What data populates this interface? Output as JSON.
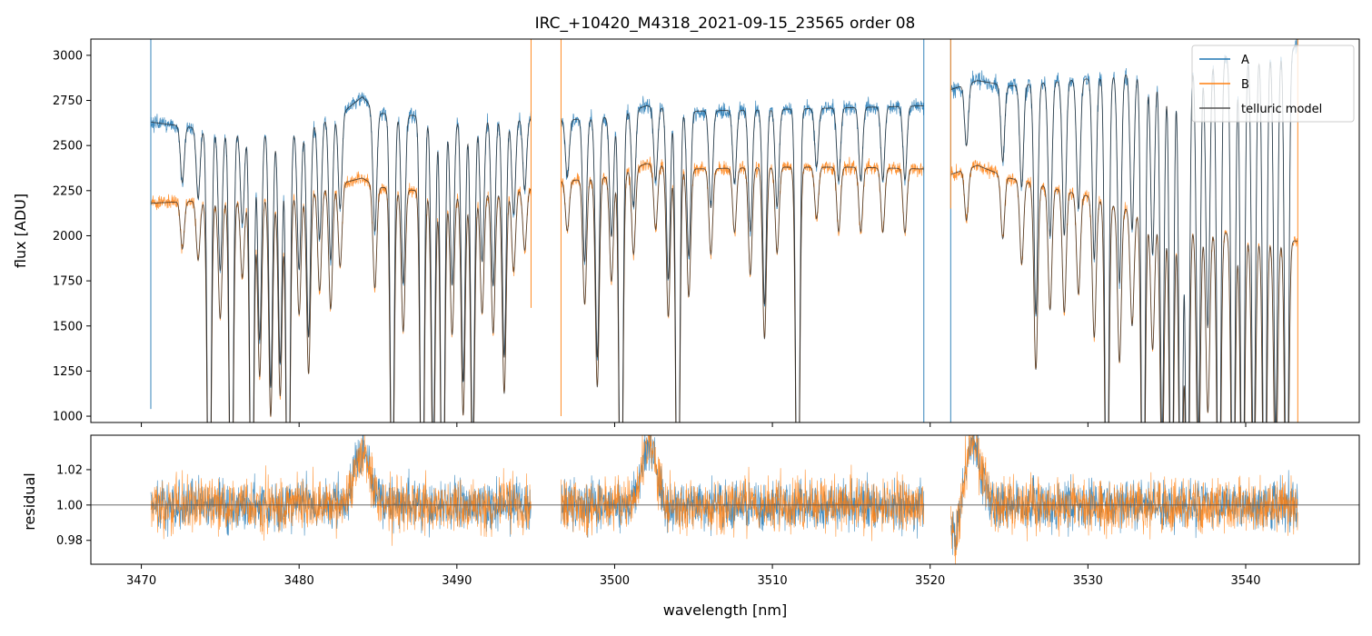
{
  "chart_data": [
    {
      "type": "line",
      "title": "IRC_+10420_M4318_2021-09-15_23565  order 08",
      "xlabel": "",
      "ylabel": "flux [ADU]",
      "xlim": [
        3466.8,
        3547.2
      ],
      "ylim": [
        965,
        3090
      ],
      "xticks": [
        3470,
        3480,
        3490,
        3500,
        3510,
        3520,
        3530,
        3540
      ],
      "yticks": [
        1000,
        1250,
        1500,
        1750,
        2000,
        2250,
        2500,
        2750,
        3000
      ],
      "ytick_labels": [
        "1000",
        "1250",
        "1500",
        "1750",
        "2000",
        "2250",
        "2500",
        "2750",
        "3000"
      ],
      "legend": {
        "placement": "top-right",
        "entries": [
          "A",
          "B",
          "telluric model"
        ]
      },
      "colors": {
        "A": "#1f77b4",
        "B": "#ff7f0e",
        "model": "#333333"
      },
      "segments": [
        {
          "range": [
            3470.6,
            3494.7
          ],
          "A": {
            "x": [
              3470.6,
              3475,
              3480,
              3483,
              3484,
              3485,
              3490,
              3494.7
            ],
            "y": [
              2630,
              2580,
              2590,
              2700,
              2770,
              2680,
              2650,
              2650
            ]
          },
          "B": {
            "x": [
              3470.6,
              3475,
              3480,
              3484,
              3485,
              3490,
              3494.7
            ],
            "y": [
              2180,
              2200,
              2230,
              2320,
              2270,
              2230,
              2260
            ]
          }
        },
        {
          "range": [
            3496.6,
            3519.6
          ],
          "A": {
            "x": [
              3496.6,
              3500,
              3502,
              3505,
              3510,
              3515,
              3519.6
            ],
            "y": [
              2640,
              2660,
              2720,
              2690,
              2700,
              2710,
              2720
            ]
          },
          "B": {
            "x": [
              3496.6,
              3500,
              3502,
              3505,
              3510,
              3515,
              3519.6
            ],
            "y": [
              2300,
              2330,
              2400,
              2370,
              2380,
              2380,
              2370
            ]
          }
        },
        {
          "range": [
            3521.3,
            3543.3
          ],
          "A": {
            "x": [
              3521.3,
              3523,
              3525,
              3530,
              3535,
              3540,
              3543.3
            ],
            "y": [
              2810,
              2860,
              2830,
              2870,
              2930,
              3020,
              3050
            ]
          },
          "B": {
            "x": [
              3521.3,
              3523,
              3525,
              3530,
              3535,
              3540,
              3543.3
            ],
            "y": [
              2340,
              2390,
              2320,
              2220,
              2080,
              2000,
              1970
            ]
          }
        }
      ],
      "absorption_lines": [
        {
          "x": 3472.6,
          "depth": 0.12
        },
        {
          "x": 3473.6,
          "depth": 0.15
        },
        {
          "x": 3474.3,
          "depth": 0.99
        },
        {
          "x": 3475.0,
          "depth": 0.3
        },
        {
          "x": 3475.7,
          "depth": 0.99
        },
        {
          "x": 3476.4,
          "depth": 0.2
        },
        {
          "x": 3477.0,
          "depth": 0.99
        },
        {
          "x": 3477.5,
          "depth": 0.45
        },
        {
          "x": 3478.2,
          "depth": 0.55
        },
        {
          "x": 3478.8,
          "depth": 0.5
        },
        {
          "x": 3479.3,
          "depth": 0.99
        },
        {
          "x": 3480.0,
          "depth": 0.3
        },
        {
          "x": 3480.6,
          "depth": 0.45
        },
        {
          "x": 3481.3,
          "depth": 0.25
        },
        {
          "x": 3482.0,
          "depth": 0.3
        },
        {
          "x": 3482.6,
          "depth": 0.2
        },
        {
          "x": 3484.8,
          "depth": 0.25
        },
        {
          "x": 3485.9,
          "depth": 0.85
        },
        {
          "x": 3486.6,
          "depth": 0.35
        },
        {
          "x": 3487.8,
          "depth": 0.99
        },
        {
          "x": 3488.5,
          "depth": 0.7
        },
        {
          "x": 3489.1,
          "depth": 0.99
        },
        {
          "x": 3489.7,
          "depth": 0.35
        },
        {
          "x": 3490.4,
          "depth": 0.55
        },
        {
          "x": 3491.0,
          "depth": 0.7
        },
        {
          "x": 3491.6,
          "depth": 0.3
        },
        {
          "x": 3492.3,
          "depth": 0.35
        },
        {
          "x": 3493.0,
          "depth": 0.5
        },
        {
          "x": 3493.6,
          "depth": 0.2
        },
        {
          "x": 3494.3,
          "depth": 0.15
        },
        {
          "x": 3497.0,
          "depth": 0.12
        },
        {
          "x": 3498.1,
          "depth": 0.3
        },
        {
          "x": 3498.9,
          "depth": 0.5
        },
        {
          "x": 3499.8,
          "depth": 0.25
        },
        {
          "x": 3500.4,
          "depth": 0.99
        },
        {
          "x": 3501.2,
          "depth": 0.2
        },
        {
          "x": 3502.6,
          "depth": 0.15
        },
        {
          "x": 3503.4,
          "depth": 0.35
        },
        {
          "x": 3504.0,
          "depth": 0.99
        },
        {
          "x": 3504.7,
          "depth": 0.3
        },
        {
          "x": 3506.1,
          "depth": 0.2
        },
        {
          "x": 3507.6,
          "depth": 0.15
        },
        {
          "x": 3508.6,
          "depth": 0.25
        },
        {
          "x": 3509.5,
          "depth": 0.4
        },
        {
          "x": 3510.3,
          "depth": 0.2
        },
        {
          "x": 3511.6,
          "depth": 0.99
        },
        {
          "x": 3512.8,
          "depth": 0.12
        },
        {
          "x": 3514.2,
          "depth": 0.15
        },
        {
          "x": 3515.6,
          "depth": 0.15
        },
        {
          "x": 3517.0,
          "depth": 0.15
        },
        {
          "x": 3518.4,
          "depth": 0.15
        },
        {
          "x": 3522.3,
          "depth": 0.12
        },
        {
          "x": 3524.6,
          "depth": 0.15
        },
        {
          "x": 3525.8,
          "depth": 0.2
        },
        {
          "x": 3526.7,
          "depth": 0.45
        },
        {
          "x": 3527.6,
          "depth": 0.3
        },
        {
          "x": 3528.5,
          "depth": 0.3
        },
        {
          "x": 3529.4,
          "depth": 0.25
        },
        {
          "x": 3530.4,
          "depth": 0.35
        },
        {
          "x": 3531.2,
          "depth": 0.99
        },
        {
          "x": 3532.0,
          "depth": 0.4
        },
        {
          "x": 3532.8,
          "depth": 0.3
        },
        {
          "x": 3533.5,
          "depth": 0.99
        },
        {
          "x": 3534.1,
          "depth": 0.35
        },
        {
          "x": 3534.7,
          "depth": 0.7
        },
        {
          "x": 3535.3,
          "depth": 0.99
        },
        {
          "x": 3535.9,
          "depth": 0.99
        },
        {
          "x": 3536.3,
          "depth": 0.99
        },
        {
          "x": 3537.0,
          "depth": 0.7
        },
        {
          "x": 3537.6,
          "depth": 0.5
        },
        {
          "x": 3538.3,
          "depth": 0.99
        },
        {
          "x": 3539.2,
          "depth": 0.99
        },
        {
          "x": 3539.8,
          "depth": 0.99
        },
        {
          "x": 3540.5,
          "depth": 0.8
        },
        {
          "x": 3541.2,
          "depth": 0.99
        },
        {
          "x": 3541.9,
          "depth": 0.7
        },
        {
          "x": 3542.6,
          "depth": 0.99
        }
      ],
      "spikes": [
        {
          "x": 3470.6,
          "series": "A",
          "y": [
            1040,
            3090
          ]
        },
        {
          "x": 3494.7,
          "series": "B",
          "y": [
            1600,
            3090
          ]
        },
        {
          "x": 3496.6,
          "series": "B",
          "y": [
            1000,
            3090
          ]
        },
        {
          "x": 3519.6,
          "series": "A",
          "y": [
            965,
            3090
          ]
        },
        {
          "x": 3521.3,
          "series": "A",
          "y": [
            965,
            3090
          ]
        },
        {
          "x": 3521.3,
          "series": "B",
          "y": [
            2150,
            3090
          ]
        },
        {
          "x": 3543.3,
          "series": "B",
          "y": [
            965,
            3090
          ]
        }
      ]
    },
    {
      "type": "line",
      "title": "",
      "xlabel": "wavelength [nm]",
      "ylabel": "residual",
      "xlim": [
        3466.8,
        3547.2
      ],
      "ylim": [
        0.9665,
        1.0395
      ],
      "xticks": [
        3470,
        3480,
        3490,
        3500,
        3510,
        3520,
        3530,
        3540
      ],
      "xtick_labels": [
        "3470",
        "3480",
        "3490",
        "3500",
        "3510",
        "3520",
        "3530",
        "3540"
      ],
      "yticks": [
        0.98,
        1.0,
        1.02
      ],
      "ytick_labels": [
        "0.98",
        "1.00",
        "1.02"
      ],
      "reference_line": 1.0,
      "noise_sigma": 0.011,
      "bumps": [
        {
          "x": 3484.0,
          "amp": 0.03,
          "width": 0.5
        },
        {
          "x": 3502.2,
          "amp": 0.035,
          "width": 0.45
        },
        {
          "x": 3522.7,
          "amp": 0.035,
          "width": 0.5
        }
      ],
      "dips": [
        {
          "x": 3521.6,
          "amp": -0.02,
          "width": 0.3
        }
      ]
    }
  ]
}
